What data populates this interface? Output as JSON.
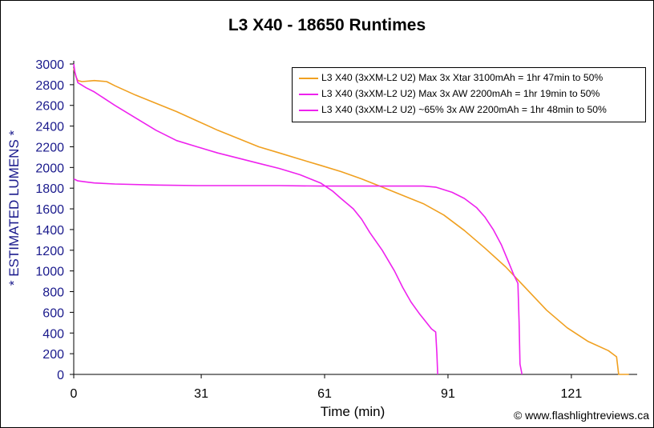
{
  "chart_data": {
    "type": "line",
    "title": "L3 X40 - 18650 Runtimes",
    "xlabel": "Time (min)",
    "ylabel": "* ESTIMATED LUMENS *",
    "xlim": [
      0,
      137
    ],
    "ylim": [
      0,
      3000
    ],
    "xticks": [
      0,
      31,
      61,
      91,
      121
    ],
    "yticks": [
      0,
      200,
      400,
      600,
      800,
      1000,
      1200,
      1400,
      1600,
      1800,
      2000,
      2200,
      2400,
      2600,
      2800,
      3000
    ],
    "grid": false,
    "legend_position": "top-right",
    "series": [
      {
        "name": "L3 X40 (3xXM-L2 U2) Max 3x Xtar 3100mAh = 1hr 47min to 50%",
        "color": "#f0a020",
        "x": [
          0,
          0.5,
          1,
          2,
          5,
          8,
          10,
          15,
          20,
          25,
          30,
          35,
          40,
          45,
          50,
          55,
          60,
          65,
          70,
          75,
          80,
          85,
          90,
          95,
          100,
          105,
          110,
          115,
          120,
          125,
          130,
          132,
          132.5,
          135
        ],
        "y": [
          2960,
          2880,
          2840,
          2830,
          2840,
          2830,
          2790,
          2700,
          2620,
          2540,
          2450,
          2360,
          2280,
          2200,
          2140,
          2080,
          2020,
          1960,
          1890,
          1810,
          1730,
          1650,
          1540,
          1390,
          1220,
          1040,
          830,
          620,
          450,
          320,
          230,
          170,
          0,
          0
        ]
      },
      {
        "name": "L3 X40 (3xXM-L2 U2) Max 3x AW 2200mAh = 1hr 19min to 50%",
        "color": "#ee22ee",
        "x": [
          0,
          0.3,
          0.7,
          1,
          3,
          5,
          10,
          15,
          20,
          25,
          30,
          35,
          40,
          45,
          50,
          55,
          60,
          63,
          65,
          68,
          70,
          72,
          75,
          78,
          80,
          82,
          84,
          85,
          87,
          88,
          88.3,
          88.5
        ],
        "y": [
          3000,
          2920,
          2860,
          2820,
          2770,
          2730,
          2600,
          2480,
          2360,
          2260,
          2200,
          2140,
          2090,
          2040,
          1990,
          1930,
          1850,
          1770,
          1700,
          1600,
          1500,
          1370,
          1200,
          1000,
          840,
          700,
          590,
          540,
          440,
          410,
          200,
          0
        ]
      },
      {
        "name": "L3 X40 (3xXM-L2 U2) ~65% 3x AW 2200mAh = 1hr 48min to 50%",
        "color": "#ee22ee",
        "x": [
          0,
          1,
          3,
          5,
          10,
          20,
          30,
          40,
          50,
          60,
          70,
          80,
          85,
          88,
          92,
          95,
          98,
          100,
          102,
          104,
          106,
          107,
          108,
          108.3,
          108.5,
          109
        ],
        "y": [
          1890,
          1870,
          1860,
          1850,
          1840,
          1830,
          1825,
          1825,
          1825,
          1820,
          1820,
          1820,
          1820,
          1810,
          1760,
          1700,
          1610,
          1520,
          1400,
          1250,
          1060,
          960,
          880,
          500,
          100,
          0
        ]
      }
    ]
  },
  "copyright": "© www.flashlightreviews.ca"
}
